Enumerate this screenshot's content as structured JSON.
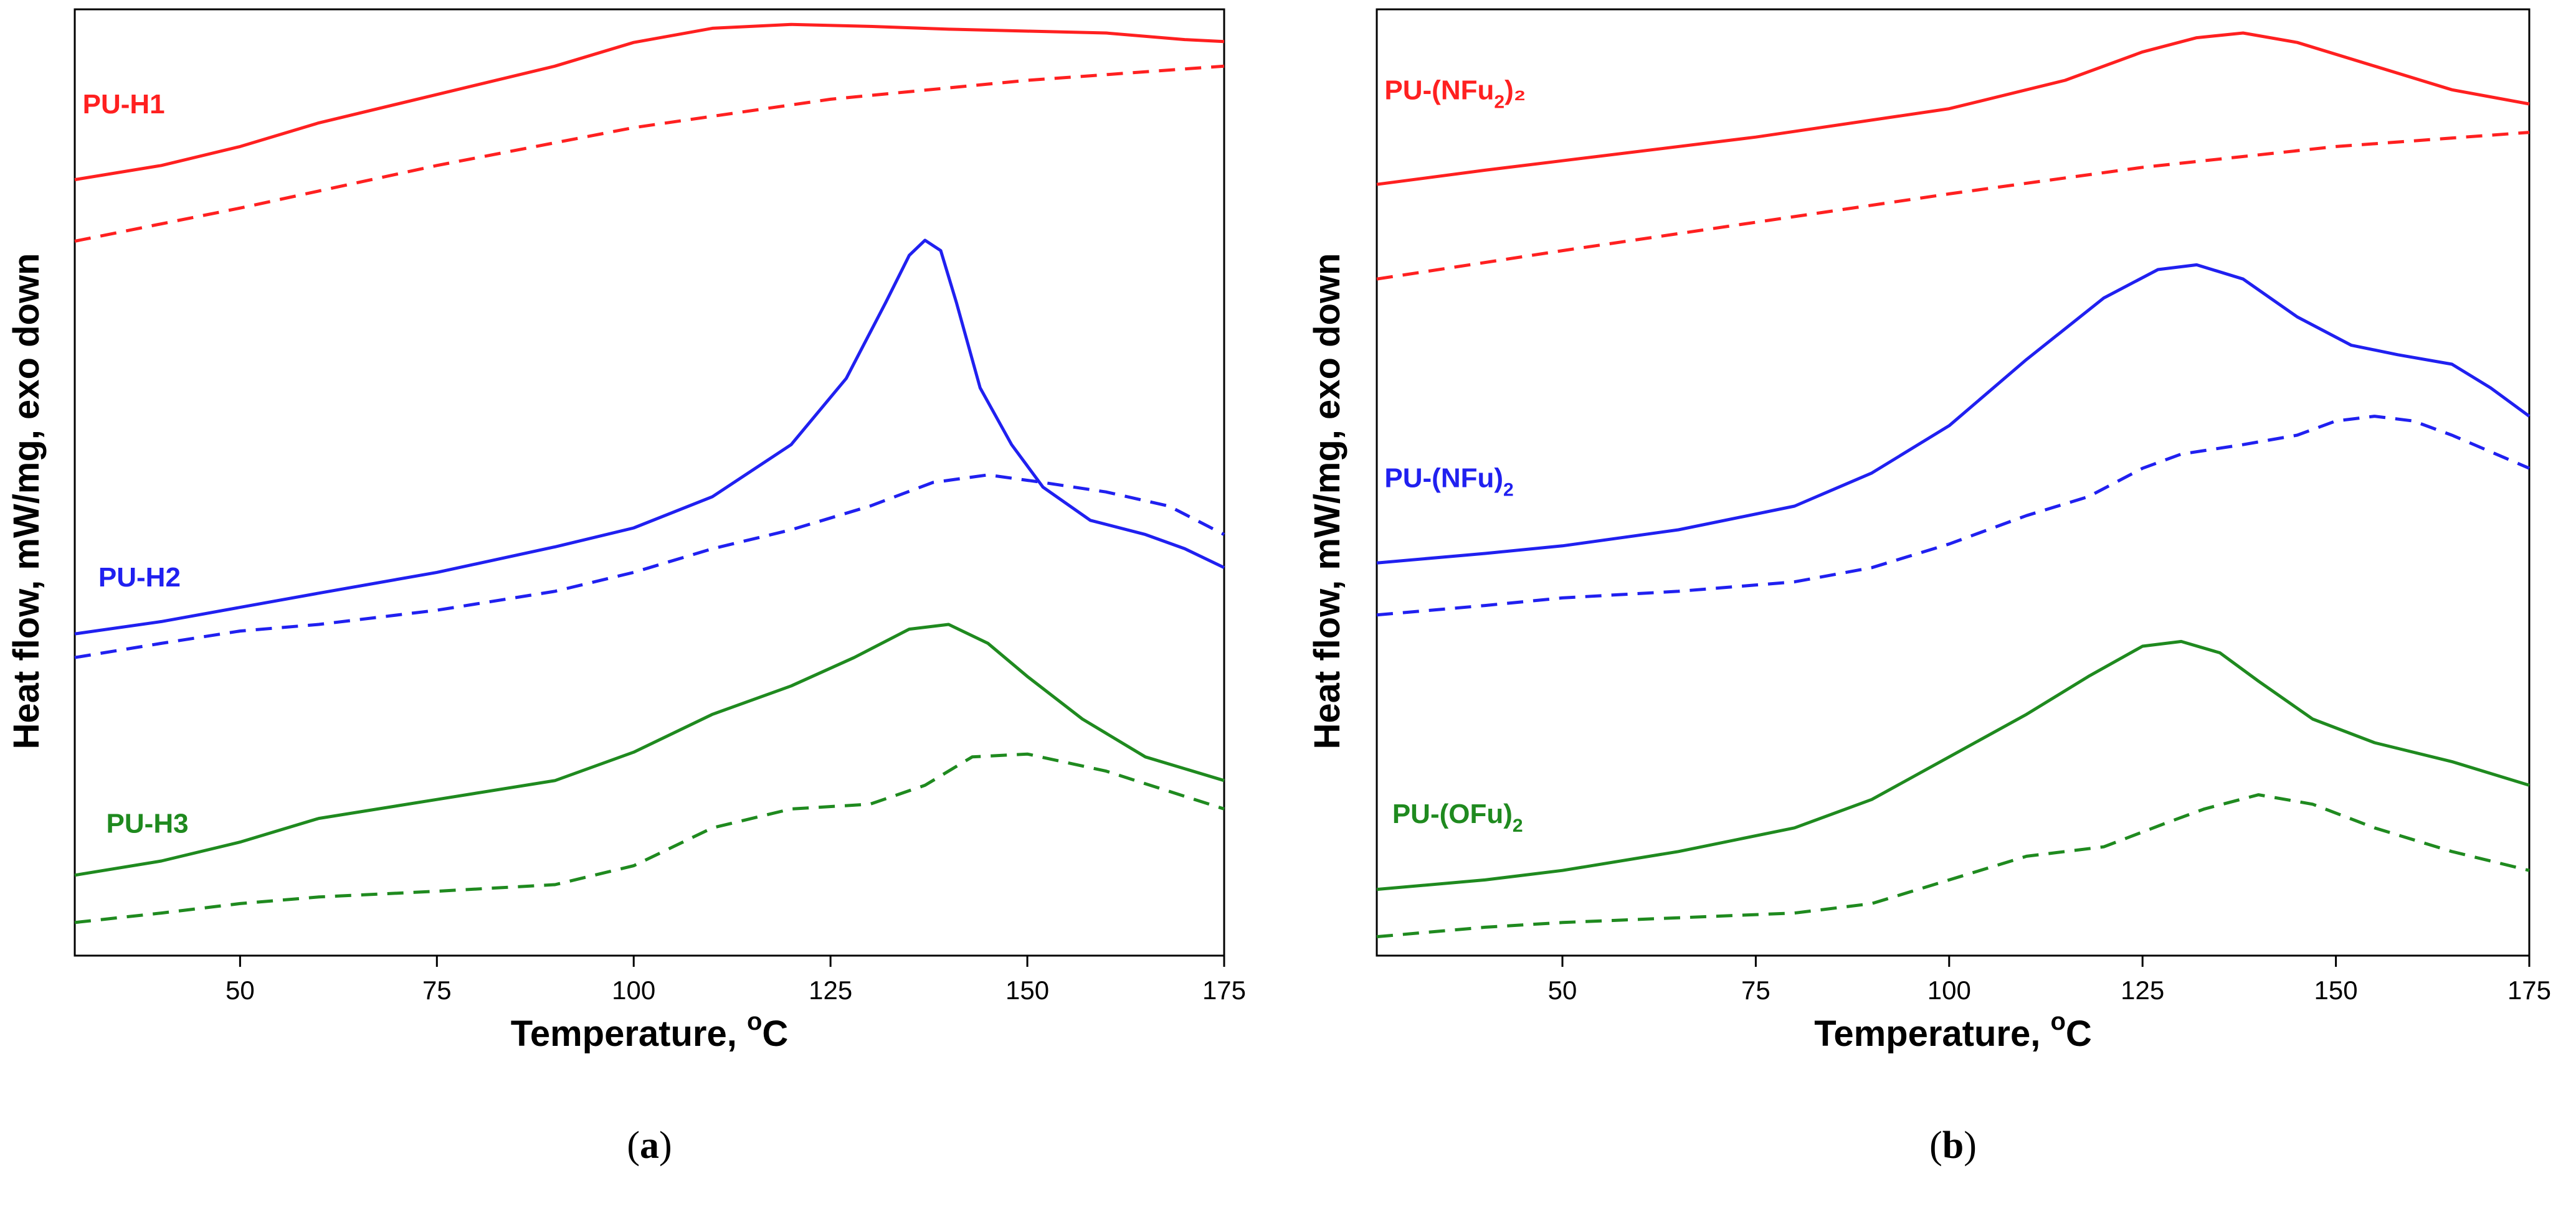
{
  "colors": {
    "red": "#ff2020",
    "blue": "#2020f0",
    "green": "#1f8a1f",
    "axis": "#000000"
  },
  "chart_data": [
    {
      "type": "line",
      "panel_label": {
        "open": "(",
        "letter": "a",
        "close": ")"
      },
      "xlabel": "Temperature, ",
      "xlabel_sup": "o",
      "xlabel_unit": "C",
      "ylabel": "Heat flow, mW/mg, exo down",
      "xlim": [
        29,
        175
      ],
      "ylim": [
        0,
        100
      ],
      "xticks": [
        50,
        75,
        100,
        125,
        150,
        175
      ],
      "series": [
        {
          "name": "PU-H1",
          "label_main": "PU-H1",
          "label_sub": "",
          "label_tail": "",
          "color": "red",
          "style": "solid",
          "label_anchor": {
            "x": 30,
            "y": 89
          },
          "points": [
            [
              29,
              82
            ],
            [
              40,
              83.5
            ],
            [
              50,
              85.5
            ],
            [
              60,
              88
            ],
            [
              75,
              91
            ],
            [
              90,
              94
            ],
            [
              100,
              96.5
            ],
            [
              110,
              98
            ],
            [
              120,
              98.4
            ],
            [
              130,
              98.2
            ],
            [
              140,
              97.9
            ],
            [
              150,
              97.7
            ],
            [
              160,
              97.5
            ],
            [
              170,
              96.8
            ],
            [
              175,
              96.6
            ]
          ]
        },
        {
          "name": "PU-H1 dashed",
          "label_main": "",
          "label_sub": "",
          "label_tail": "",
          "color": "red",
          "style": "dashed",
          "points": [
            [
              29,
              75.5
            ],
            [
              50,
              79
            ],
            [
              75,
              83.5
            ],
            [
              100,
              87.5
            ],
            [
              125,
              90.5
            ],
            [
              150,
              92.5
            ],
            [
              175,
              94
            ]
          ]
        },
        {
          "name": "PU-H2",
          "label_main": "PU-H2",
          "label_sub": "",
          "label_tail": "",
          "color": "blue",
          "style": "solid",
          "label_anchor": {
            "x": 32,
            "y": 39
          },
          "points": [
            [
              29,
              34
            ],
            [
              40,
              35.3
            ],
            [
              50,
              36.8
            ],
            [
              60,
              38.3
            ],
            [
              75,
              40.5
            ],
            [
              90,
              43.2
            ],
            [
              100,
              45.2
            ],
            [
              110,
              48.5
            ],
            [
              120,
              54
            ],
            [
              127,
              61
            ],
            [
              132,
              69
            ],
            [
              135,
              74
            ],
            [
              137,
              75.6
            ],
            [
              139,
              74.5
            ],
            [
              141,
              69
            ],
            [
              144,
              60
            ],
            [
              148,
              54
            ],
            [
              152,
              49.5
            ],
            [
              158,
              46
            ],
            [
              165,
              44.5
            ],
            [
              170,
              43
            ],
            [
              175,
              41
            ]
          ]
        },
        {
          "name": "PU-H2 dashed",
          "label_main": "",
          "label_sub": "",
          "label_tail": "",
          "color": "blue",
          "style": "dashed",
          "points": [
            [
              29,
              31.5
            ],
            [
              40,
              33
            ],
            [
              50,
              34.3
            ],
            [
              60,
              35
            ],
            [
              75,
              36.5
            ],
            [
              90,
              38.5
            ],
            [
              100,
              40.5
            ],
            [
              110,
              43
            ],
            [
              120,
              45
            ],
            [
              130,
              47.5
            ],
            [
              138,
              50
            ],
            [
              145,
              50.8
            ],
            [
              152,
              50
            ],
            [
              160,
              49
            ],
            [
              168,
              47.5
            ],
            [
              175,
              44.5
            ]
          ]
        },
        {
          "name": "PU-H3",
          "label_main": "PU-H3",
          "label_sub": "",
          "label_tail": "",
          "color": "green",
          "style": "solid",
          "label_anchor": {
            "x": 33,
            "y": 13
          },
          "points": [
            [
              29,
              8.5
            ],
            [
              40,
              10
            ],
            [
              50,
              12
            ],
            [
              60,
              14.5
            ],
            [
              75,
              16.5
            ],
            [
              90,
              18.5
            ],
            [
              100,
              21.5
            ],
            [
              110,
              25.5
            ],
            [
              120,
              28.5
            ],
            [
              128,
              31.5
            ],
            [
              135,
              34.5
            ],
            [
              140,
              35
            ],
            [
              145,
              33
            ],
            [
              150,
              29.5
            ],
            [
              157,
              25
            ],
            [
              165,
              21
            ],
            [
              175,
              18.5
            ]
          ]
        },
        {
          "name": "PU-H3 dashed",
          "label_main": "",
          "label_sub": "",
          "label_tail": "",
          "color": "green",
          "style": "dashed",
          "points": [
            [
              29,
              3.5
            ],
            [
              40,
              4.5
            ],
            [
              50,
              5.5
            ],
            [
              60,
              6.2
            ],
            [
              75,
              6.8
            ],
            [
              90,
              7.5
            ],
            [
              100,
              9.5
            ],
            [
              110,
              13.5
            ],
            [
              120,
              15.5
            ],
            [
              130,
              16
            ],
            [
              137,
              18
            ],
            [
              143,
              21
            ],
            [
              150,
              21.3
            ],
            [
              160,
              19.5
            ],
            [
              175,
              15.5
            ]
          ]
        }
      ]
    },
    {
      "type": "line",
      "panel_label": {
        "open": "(",
        "letter": "b",
        "close": ")"
      },
      "xlabel": "Temperature, ",
      "xlabel_sup": "o",
      "xlabel_unit": "C",
      "ylabel": "Heat flow, mW/mg, exo down",
      "xlim": [
        26,
        175
      ],
      "ylim": [
        0,
        100
      ],
      "xticks": [
        50,
        75,
        100,
        125,
        150,
        175
      ],
      "series": [
        {
          "name": "PU-(NFu2)2",
          "label_main": "PU-(NFu",
          "label_sub": "2",
          "label_tail": ")₂",
          "color": "red",
          "style": "solid",
          "label_anchor": {
            "x": 27,
            "y": 90.5
          },
          "points": [
            [
              26,
              81.5
            ],
            [
              40,
              83
            ],
            [
              50,
              84
            ],
            [
              75,
              86.5
            ],
            [
              100,
              89.5
            ],
            [
              115,
              92.5
            ],
            [
              125,
              95.5
            ],
            [
              132,
              97
            ],
            [
              138,
              97.5
            ],
            [
              145,
              96.5
            ],
            [
              155,
              94
            ],
            [
              165,
              91.5
            ],
            [
              175,
              90
            ]
          ]
        },
        {
          "name": "PU-(NFu2)2 dashed",
          "label_main": "",
          "label_sub": "",
          "label_tail": "",
          "color": "red",
          "style": "dashed",
          "points": [
            [
              26,
              71.5
            ],
            [
              50,
              74.5
            ],
            [
              75,
              77.5
            ],
            [
              100,
              80.5
            ],
            [
              125,
              83.3
            ],
            [
              150,
              85.5
            ],
            [
              175,
              87
            ]
          ]
        },
        {
          "name": "PU-(NFu)2",
          "label_main": "PU-(NFu)",
          "label_sub": "2",
          "label_tail": "",
          "color": "blue",
          "style": "solid",
          "label_anchor": {
            "x": 27,
            "y": 49.5
          },
          "points": [
            [
              26,
              41.5
            ],
            [
              40,
              42.5
            ],
            [
              50,
              43.3
            ],
            [
              65,
              45
            ],
            [
              80,
              47.5
            ],
            [
              90,
              51
            ],
            [
              100,
              56
            ],
            [
              110,
              63
            ],
            [
              120,
              69.5
            ],
            [
              127,
              72.5
            ],
            [
              132,
              73
            ],
            [
              138,
              71.5
            ],
            [
              145,
              67.5
            ],
            [
              152,
              64.5
            ],
            [
              158,
              63.5
            ],
            [
              165,
              62.5
            ],
            [
              170,
              60
            ],
            [
              175,
              57
            ]
          ]
        },
        {
          "name": "PU-(NFu)2 dashed",
          "label_main": "",
          "label_sub": "",
          "label_tail": "",
          "color": "blue",
          "style": "dashed",
          "points": [
            [
              26,
              36
            ],
            [
              40,
              37
            ],
            [
              50,
              37.8
            ],
            [
              65,
              38.5
            ],
            [
              80,
              39.5
            ],
            [
              90,
              41
            ],
            [
              100,
              43.5
            ],
            [
              110,
              46.5
            ],
            [
              118,
              48.5
            ],
            [
              125,
              51.5
            ],
            [
              130,
              53
            ],
            [
              138,
              54
            ],
            [
              145,
              55
            ],
            [
              150,
              56.5
            ],
            [
              155,
              57
            ],
            [
              160,
              56.5
            ],
            [
              165,
              55
            ],
            [
              175,
              51.5
            ]
          ]
        },
        {
          "name": "PU-(OFu)2",
          "label_main": "PU-(OFu)",
          "label_sub": "2",
          "label_tail": "",
          "color": "green",
          "style": "solid",
          "label_anchor": {
            "x": 28,
            "y": 14
          },
          "points": [
            [
              26,
              7
            ],
            [
              40,
              8
            ],
            [
              50,
              9
            ],
            [
              65,
              11
            ],
            [
              80,
              13.5
            ],
            [
              90,
              16.5
            ],
            [
              100,
              21
            ],
            [
              110,
              25.5
            ],
            [
              118,
              29.5
            ],
            [
              125,
              32.7
            ],
            [
              130,
              33.2
            ],
            [
              135,
              32
            ],
            [
              140,
              29
            ],
            [
              147,
              25
            ],
            [
              155,
              22.5
            ],
            [
              165,
              20.5
            ],
            [
              175,
              18
            ]
          ]
        },
        {
          "name": "PU-(OFu)2 dashed",
          "label_main": "",
          "label_sub": "",
          "label_tail": "",
          "color": "green",
          "style": "dashed",
          "points": [
            [
              26,
              2
            ],
            [
              40,
              3
            ],
            [
              50,
              3.5
            ],
            [
              65,
              4
            ],
            [
              80,
              4.5
            ],
            [
              90,
              5.5
            ],
            [
              100,
              8
            ],
            [
              110,
              10.5
            ],
            [
              120,
              11.5
            ],
            [
              128,
              14
            ],
            [
              133,
              15.5
            ],
            [
              140,
              17
            ],
            [
              147,
              16
            ],
            [
              155,
              13.5
            ],
            [
              165,
              11
            ],
            [
              175,
              9
            ]
          ]
        }
      ]
    }
  ]
}
